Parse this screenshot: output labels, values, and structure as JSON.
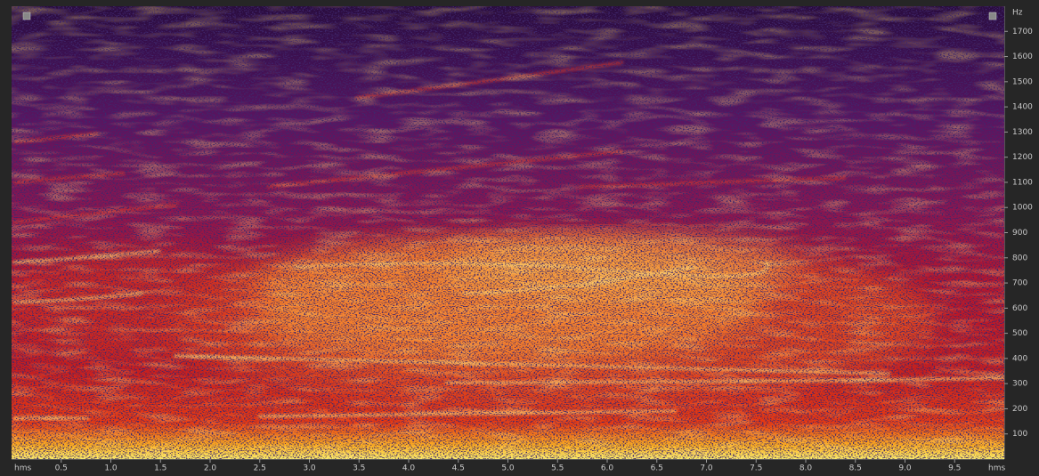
{
  "chart_data": {
    "type": "spectrogram",
    "x_unit": "hms",
    "y_unit": "Hz",
    "xlim": [
      0,
      10
    ],
    "xticks": [
      0.5,
      {
        "value": 1,
        "label": "1.0"
      },
      1.5,
      {
        "value": 2,
        "label": "2.0"
      },
      2.5,
      {
        "value": 3,
        "label": "3.0"
      },
      3.5,
      {
        "value": 4,
        "label": "4.0"
      },
      4.5,
      {
        "value": 5,
        "label": "5.0"
      },
      5.5,
      {
        "value": 6,
        "label": "6.0"
      },
      6.5,
      {
        "value": 7,
        "label": "7.0"
      },
      7.5,
      {
        "value": 8,
        "label": "8.0"
      },
      8.5,
      {
        "value": 9,
        "label": "9.0"
      },
      9.5
    ],
    "ylim": [
      0,
      1800
    ],
    "yticks": [
      100,
      200,
      300,
      400,
      500,
      600,
      700,
      800,
      900,
      1000,
      1100,
      1200,
      1300,
      1400,
      1500,
      1600,
      1700
    ]
  }
}
